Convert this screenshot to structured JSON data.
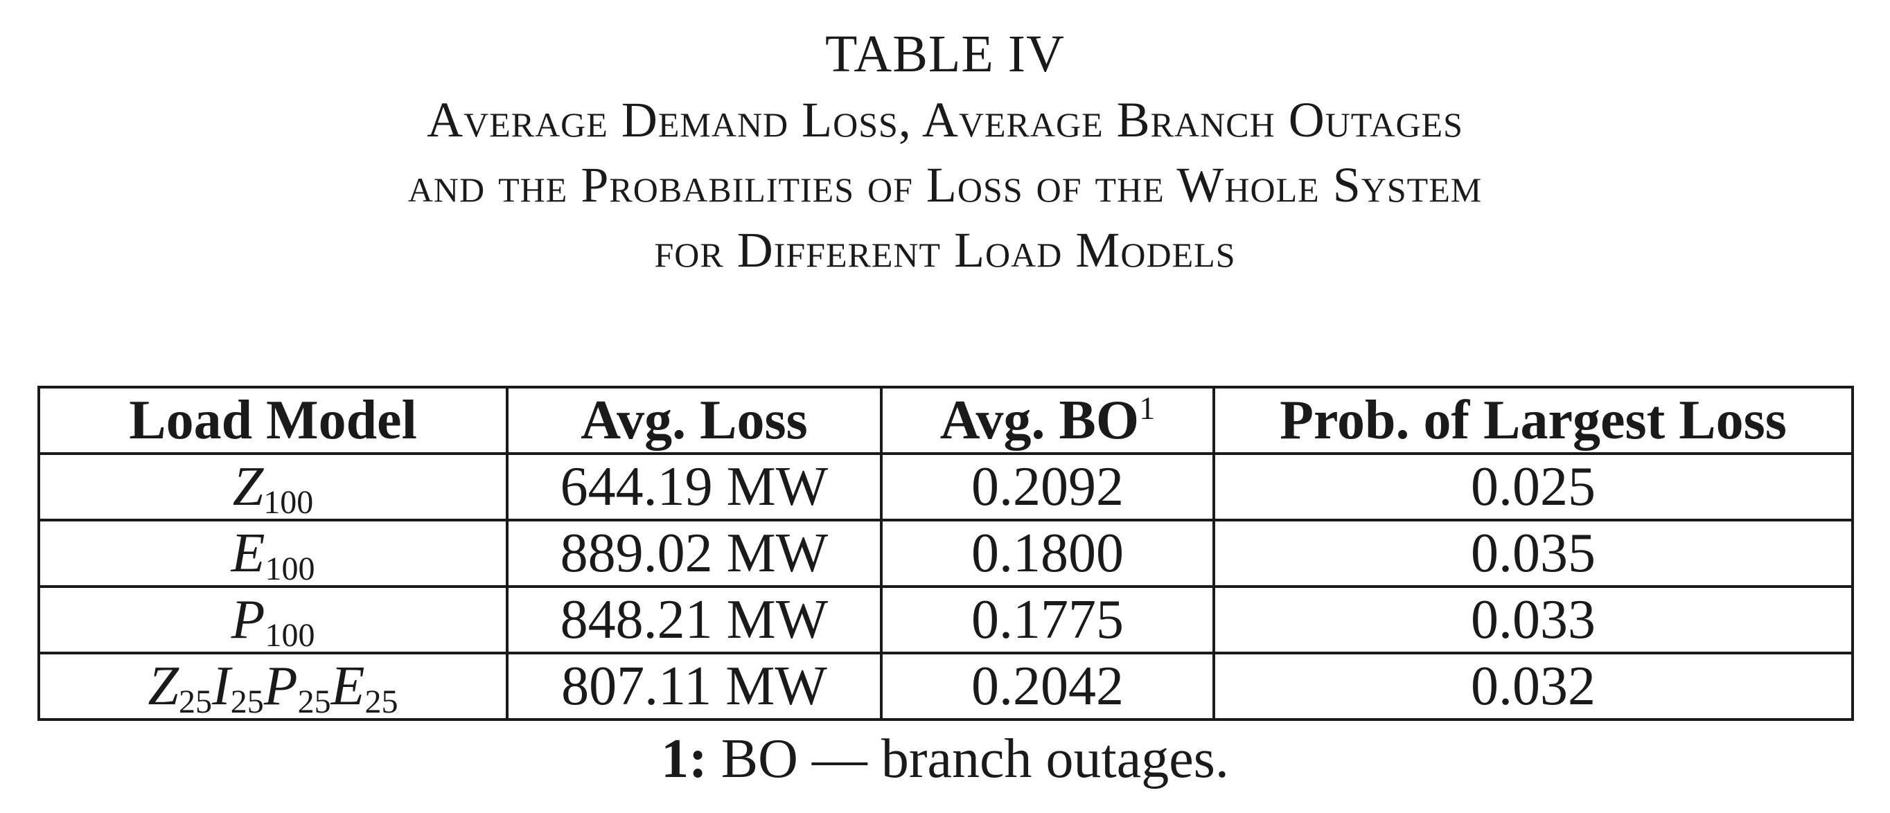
{
  "caption": {
    "table_label": "TABLE IV",
    "title_lines": [
      "Average Demand Loss, Average Branch Outages",
      "and the Probabilities of Loss of the Whole System",
      "for Different Load Models"
    ]
  },
  "table": {
    "headers": {
      "load_model": "Load Model",
      "avg_loss": "Avg. Loss",
      "avg_bo": "Avg. BO",
      "avg_bo_sup": "1",
      "prob_largest_loss": "Prob. of Largest Loss"
    },
    "rows": [
      {
        "model": [
          {
            "sym": "Z",
            "sub": "100"
          }
        ],
        "avg_loss": "644.19 MW",
        "avg_bo": "0.2092",
        "prob": "0.025"
      },
      {
        "model": [
          {
            "sym": "E",
            "sub": "100"
          }
        ],
        "avg_loss": "889.02 MW",
        "avg_bo": "0.1800",
        "prob": "0.035"
      },
      {
        "model": [
          {
            "sym": "P",
            "sub": "100"
          }
        ],
        "avg_loss": "848.21 MW",
        "avg_bo": "0.1775",
        "prob": "0.033"
      },
      {
        "model": [
          {
            "sym": "Z",
            "sub": "25"
          },
          {
            "sym": "I",
            "sub": "25"
          },
          {
            "sym": "P",
            "sub": "25"
          },
          {
            "sym": "E",
            "sub": "25"
          }
        ],
        "avg_loss": "807.11 MW",
        "avg_bo": "0.2042",
        "prob": "0.032"
      }
    ]
  },
  "footnote": {
    "mark": "1:",
    "text": " BO — branch outages."
  }
}
